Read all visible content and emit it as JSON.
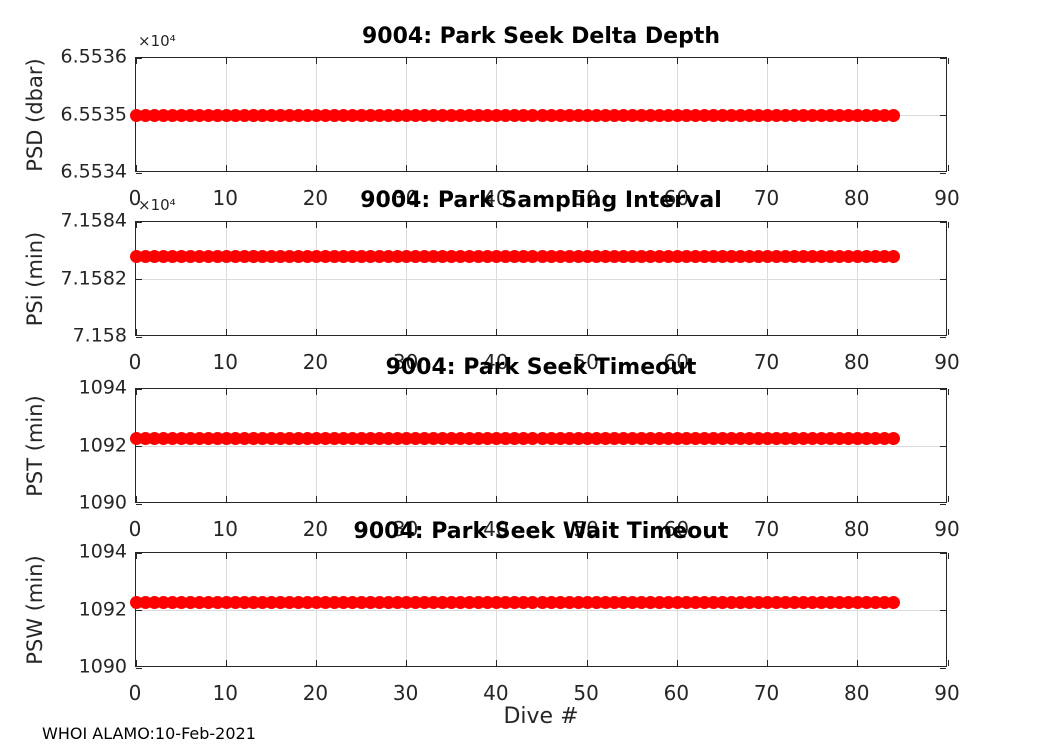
{
  "chart_data": {
    "type": "scatter",
    "figure_kind": "matlab-style 4-row subplot figure",
    "watermark": "WHOI ALAMO:10-Feb-2021",
    "colors": {
      "marker": "#ff0000",
      "axis": "#262626",
      "grid": "#dcdcdc",
      "title_text": "#000000",
      "background": "#ffffff"
    },
    "shared_x": {
      "label": "Dive #",
      "lim": [
        0,
        90
      ],
      "ticks": [
        0,
        10,
        20,
        30,
        40,
        50,
        60,
        70,
        80,
        90
      ],
      "tick_labels": [
        "0",
        "10",
        "20",
        "30",
        "40",
        "50",
        "60",
        "70",
        "80",
        "90"
      ],
      "dives": [
        0,
        1,
        2,
        3,
        4,
        5,
        6,
        7,
        8,
        9,
        10,
        11,
        12,
        13,
        14,
        15,
        16,
        17,
        18,
        19,
        20,
        21,
        22,
        23,
        24,
        25,
        26,
        27,
        28,
        29,
        30,
        31,
        32,
        33,
        34,
        35,
        36,
        37,
        38,
        39,
        40,
        41,
        42,
        43,
        44,
        45,
        46,
        47,
        48,
        49,
        50,
        51,
        52,
        53,
        54,
        55,
        56,
        57,
        58,
        59,
        60,
        61,
        62,
        63,
        64,
        65,
        66,
        67,
        68,
        69,
        70,
        71,
        72,
        73,
        74,
        75,
        76,
        77,
        78,
        79,
        80,
        81,
        82,
        83,
        84
      ]
    },
    "subplots": [
      {
        "title": "9004: Park Seek Delta Depth",
        "ylabel": "PSD (dbar)",
        "y_exponent_label": "×10⁴",
        "ylim": [
          65534,
          65536
        ],
        "yticks": [
          65534,
          65535,
          65536
        ],
        "ytick_labels": [
          "6.5534",
          "6.5535",
          "6.5536"
        ],
        "grid": true,
        "series": [
          {
            "name": "PSD",
            "marker": "filled-circle",
            "color": "#ff0000",
            "y_constant": 65535
          }
        ]
      },
      {
        "title": "9004: Park Sampling Interval",
        "ylabel": "PSi (min)",
        "y_exponent_label": "×10⁴",
        "ylim": [
          71580,
          71584
        ],
        "yticks": [
          71580,
          71582,
          71584
        ],
        "ytick_labels": [
          "7.158",
          "7.1582",
          "7.1584"
        ],
        "grid": true,
        "series": [
          {
            "name": "PSi",
            "marker": "filled-circle",
            "color": "#ff0000",
            "y_constant": 71582.8
          }
        ]
      },
      {
        "title": "9004: Park Seek Timeout",
        "ylabel": "PST (min)",
        "y_exponent_label": null,
        "ylim": [
          1090,
          1094
        ],
        "yticks": [
          1090,
          1092,
          1094
        ],
        "ytick_labels": [
          "1090",
          "1092",
          "1094"
        ],
        "grid": true,
        "series": [
          {
            "name": "PST",
            "marker": "filled-circle",
            "color": "#ff0000",
            "y_constant": 1092.27
          }
        ]
      },
      {
        "title": "9004: Park Seek Wait Timeout",
        "ylabel": "PSW (min)",
        "y_exponent_label": null,
        "ylim": [
          1090,
          1094
        ],
        "yticks": [
          1090,
          1092,
          1094
        ],
        "ytick_labels": [
          "1090",
          "1092",
          "1094"
        ],
        "grid": true,
        "series": [
          {
            "name": "PSW",
            "marker": "filled-circle",
            "color": "#ff0000",
            "y_constant": 1092.27
          }
        ]
      }
    ]
  }
}
